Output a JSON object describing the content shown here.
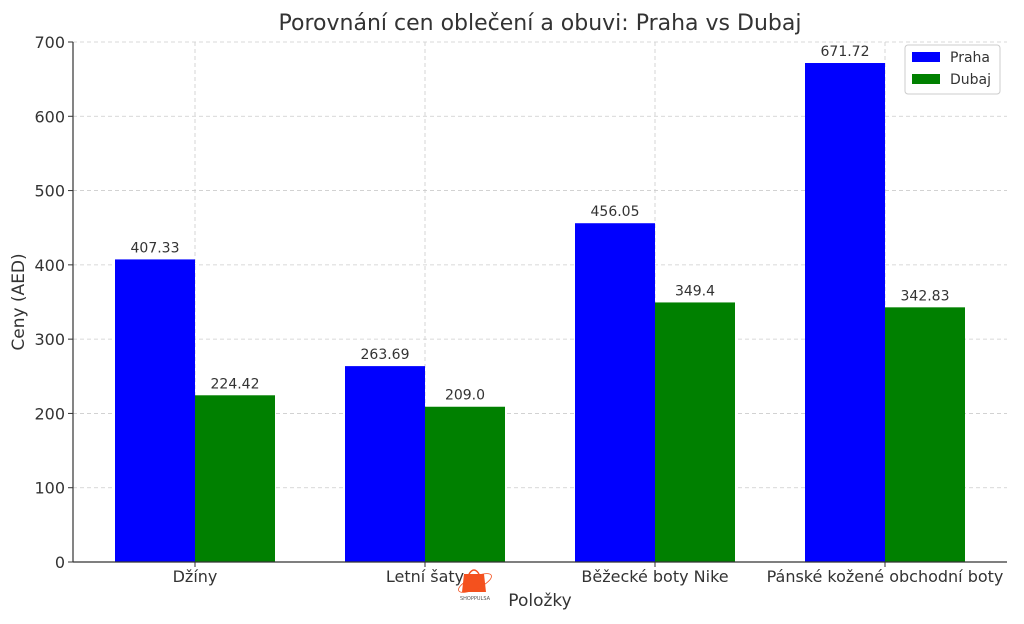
{
  "chart_data": {
    "type": "bar",
    "title": "Porovnání cen oblečení a obuvi: Praha vs Dubaj",
    "xlabel": "Položky",
    "ylabel": "Ceny (AED)",
    "categories": [
      "Džíny",
      "Letní šaty",
      "Běžecké boty Nike",
      "Pánské kožené obchodní boty"
    ],
    "series": [
      {
        "name": "Praha",
        "color": "#0000ff",
        "values": [
          407.33,
          263.69,
          456.05,
          671.72
        ],
        "labels": [
          "407.33",
          "263.69",
          "456.05",
          "671.72"
        ]
      },
      {
        "name": "Dubaj",
        "color": "#008000",
        "values": [
          224.42,
          209.0,
          349.4,
          342.83
        ],
        "labels": [
          "224.42",
          "209.0",
          "349.4",
          "342.83"
        ]
      }
    ],
    "ylim": [
      0,
      700
    ],
    "yticks": [
      0,
      100,
      200,
      300,
      400,
      500,
      600,
      700
    ],
    "grid": true,
    "legend": "top-right"
  },
  "watermark": {
    "text": "SHOPPULSA"
  }
}
